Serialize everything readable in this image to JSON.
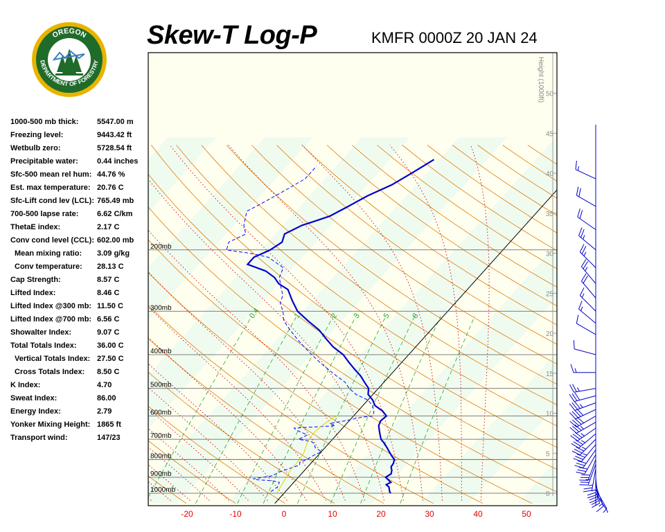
{
  "header": {
    "title": "Skew-T Log-P",
    "station": "KMFR 0000Z 20 JAN 24"
  },
  "logo": {
    "top_text": "OREGON",
    "ring_text": "DEPARTMENT OF FORESTRY",
    "ring_color": "#1f6b2a",
    "accent_color": "#e8b400"
  },
  "stats": [
    {
      "label": "1000-500 mb thick:",
      "value": "5547.00 m"
    },
    {
      "label": "Freezing level:",
      "value": "9443.42 ft"
    },
    {
      "label": "Wetbulb zero:",
      "value": "5728.54 ft"
    },
    {
      "label": "Precipitable water:",
      "value": "0.44 inches"
    },
    {
      "label": "Sfc-500 mean rel hum:",
      "value": "44.76 %"
    },
    {
      "label": "Est. max temperature:",
      "value": "20.76 C"
    },
    {
      "label": "Sfc-Lift cond lev (LCL):",
      "value": "765.49 mb"
    },
    {
      "label": "700-500 lapse rate:",
      "value": "6.62 C/km"
    },
    {
      "label": "ThetaE index:",
      "value": "2.17 C"
    },
    {
      "label": "Conv cond level (CCL):",
      "value": "602.00 mb"
    },
    {
      "label": "Mean mixing ratio:",
      "value": "3.09 g/kg",
      "indent": true
    },
    {
      "label": "Conv temperature:",
      "value": "28.13 C",
      "indent": true
    },
    {
      "label": "Cap Strength:",
      "value": "8.57 C"
    },
    {
      "label": "Lifted Index:",
      "value": "8.46 C"
    },
    {
      "label": "Lifted Index @300 mb:",
      "value": "11.50 C"
    },
    {
      "label": "Lifted Index @700 mb:",
      "value": "6.56 C"
    },
    {
      "label": "Showalter Index:",
      "value": "9.07 C"
    },
    {
      "label": "Total Totals Index:",
      "value": "36.00 C"
    },
    {
      "label": "Vertical Totals Index:",
      "value": "27.50 C",
      "indent": true
    },
    {
      "label": "Cross Totals Index:",
      "value": "8.50 C",
      "indent": true
    },
    {
      "label": "K Index:",
      "value": "4.70"
    },
    {
      "label": "Sweat Index:",
      "value": "86.00"
    },
    {
      "label": "Energy Index:",
      "value": "2.79"
    },
    {
      "label": "Yonker Mixing Height:",
      "value": "1865 ft"
    },
    {
      "label": "Transport wind:",
      "value": "147/23"
    }
  ],
  "chart_data": {
    "type": "line",
    "title": "Skew-T Log-P",
    "subtitle": "KMFR 0000Z 20 JAN 24",
    "xlabel": "",
    "ylabel": "",
    "x_ticks": [
      -20,
      -10,
      0,
      10,
      20,
      30,
      40,
      50
    ],
    "pressure_levels": [
      200,
      300,
      400,
      500,
      600,
      700,
      800,
      900,
      1000
    ],
    "pressure_labels": [
      "200mb",
      "300mb",
      "400mb",
      "500mb",
      "600mb",
      "700mb",
      "800mb",
      "900mb",
      "1000mb"
    ],
    "height_label": "Height (1000ft)",
    "height_ticks": [
      0,
      5,
      10,
      15,
      20,
      25,
      30,
      35,
      40,
      45,
      50
    ],
    "mixing_ratio_labels": [
      "0.4",
      "1",
      "2",
      "3",
      "5",
      "8"
    ],
    "colors": {
      "temperature": "#0000cc",
      "dewpoint": "#0000ff",
      "dry_adiabat": "#e07a00",
      "moist_adiabat": "#cc0000",
      "mixing_ratio": "#2aa52a",
      "isotherm_zero": "#000000",
      "parcel": "#e6d200",
      "x_tick_label": "#e00000",
      "band_yellow": "#fffff0",
      "band_green": "#f0fbf0"
    },
    "series": [
      {
        "name": "",
        "role": "temperature",
        "points": [
          [
            22,
            1000
          ],
          [
            21.5,
            990
          ],
          [
            21,
            975
          ],
          [
            20.5,
            960
          ],
          [
            19.5,
            945
          ],
          [
            20,
            930
          ],
          [
            19,
            915
          ],
          [
            18,
            900
          ],
          [
            18.5,
            880
          ],
          [
            18,
            860
          ],
          [
            17.2,
            840
          ],
          [
            17,
            820
          ],
          [
            16.5,
            800
          ],
          [
            15.2,
            780
          ],
          [
            14,
            760
          ],
          [
            12.8,
            740
          ],
          [
            11.5,
            720
          ],
          [
            10,
            700
          ],
          [
            9,
            680
          ],
          [
            8,
            660
          ],
          [
            7,
            640
          ],
          [
            6.5,
            620
          ],
          [
            6.8,
            600
          ],
          [
            5,
            580
          ],
          [
            2.5,
            560
          ],
          [
            1,
            540
          ],
          [
            -1,
            520
          ],
          [
            -2,
            500
          ],
          [
            -4,
            480
          ],
          [
            -6,
            460
          ],
          [
            -8.5,
            440
          ],
          [
            -11,
            420
          ],
          [
            -13.5,
            400
          ],
          [
            -17,
            380
          ],
          [
            -20,
            360
          ],
          [
            -23,
            340
          ],
          [
            -27,
            320
          ],
          [
            -31,
            300
          ],
          [
            -34,
            280
          ],
          [
            -37,
            260
          ],
          [
            -40,
            250
          ],
          [
            -42,
            240
          ],
          [
            -45,
            230
          ],
          [
            -50,
            220
          ],
          [
            -50,
            210
          ],
          [
            -48,
            200
          ],
          [
            -47,
            190
          ],
          [
            -48,
            180
          ],
          [
            -46,
            170
          ],
          [
            -44,
            165
          ],
          [
            -42,
            160
          ],
          [
            -40,
            150
          ],
          [
            -38,
            140
          ],
          [
            -35,
            130
          ],
          [
            -33,
            120
          ],
          [
            -31,
            110
          ]
        ]
      },
      {
        "name": "",
        "role": "dewpoint",
        "points": [
          [
            -3,
            990
          ],
          [
            -2.5,
            960
          ],
          [
            -3,
            930
          ],
          [
            -5,
            920
          ],
          [
            -8,
            915
          ],
          [
            -9,
            910
          ],
          [
            -5.5,
            890
          ],
          [
            -5,
            870
          ],
          [
            -3.5,
            850
          ],
          [
            -2,
            830
          ],
          [
            -2.5,
            815
          ],
          [
            -1.5,
            800
          ],
          [
            -1,
            780
          ],
          [
            0,
            760
          ],
          [
            -2,
            740
          ],
          [
            -3,
            720
          ],
          [
            -4,
            710
          ],
          [
            -7,
            700
          ],
          [
            -6,
            680
          ],
          [
            -9,
            660
          ],
          [
            -10,
            650
          ],
          [
            -2,
            640
          ],
          [
            -3.5,
            630
          ],
          [
            -1,
            620
          ],
          [
            2,
            605
          ],
          [
            4,
            600
          ],
          [
            3.5,
            585
          ],
          [
            2,
            560
          ],
          [
            0,
            540
          ],
          [
            -3.5,
            520
          ],
          [
            -6,
            500
          ],
          [
            -8,
            480
          ],
          [
            -11,
            460
          ],
          [
            -14,
            440
          ],
          [
            -17,
            420
          ],
          [
            -20,
            400
          ],
          [
            -23,
            380
          ],
          [
            -26,
            360
          ],
          [
            -29,
            340
          ],
          [
            -32,
            320
          ],
          [
            -34,
            300
          ],
          [
            -36,
            285
          ],
          [
            -37,
            270
          ],
          [
            -39,
            255
          ],
          [
            -41,
            240
          ],
          [
            -42,
            225
          ],
          [
            -47,
            210
          ],
          [
            -51,
            205
          ],
          [
            -57,
            200
          ],
          [
            -58,
            190
          ],
          [
            -56,
            180
          ],
          [
            -58,
            170
          ],
          [
            -60,
            155
          ],
          [
            -58,
            145
          ],
          [
            -56,
            135
          ],
          [
            -54,
            125
          ],
          [
            -54,
            115
          ]
        ]
      },
      {
        "name": "",
        "role": "parcel",
        "points": [
          [
            -1.5,
            1000
          ],
          [
            -2,
            950
          ],
          [
            -2.5,
            900
          ],
          [
            -3,
            850
          ],
          [
            -3,
            800
          ],
          [
            -3.5,
            760
          ],
          [
            -4.5,
            720
          ],
          [
            -5,
            690
          ],
          [
            -5,
            660
          ],
          [
            -4.5,
            630
          ],
          [
            -4,
            610
          ],
          [
            -3.5,
            600
          ]
        ]
      }
    ],
    "wind_barbs": [
      {
        "p": 1000,
        "dir": 147,
        "spd": 5
      },
      {
        "p": 975,
        "dir": 150,
        "spd": 10
      },
      {
        "p": 950,
        "dir": 160,
        "spd": 15
      },
      {
        "p": 925,
        "dir": 170,
        "spd": 20
      },
      {
        "p": 900,
        "dir": 175,
        "spd": 20
      },
      {
        "p": 875,
        "dir": 180,
        "spd": 25
      },
      {
        "p": 850,
        "dir": 190,
        "spd": 25
      },
      {
        "p": 825,
        "dir": 200,
        "spd": 25
      },
      {
        "p": 800,
        "dir": 200,
        "spd": 30
      },
      {
        "p": 775,
        "dir": 210,
        "spd": 30
      },
      {
        "p": 750,
        "dir": 215,
        "spd": 30
      },
      {
        "p": 725,
        "dir": 220,
        "spd": 35
      },
      {
        "p": 700,
        "dir": 225,
        "spd": 35
      },
      {
        "p": 675,
        "dir": 230,
        "spd": 35
      },
      {
        "p": 650,
        "dir": 235,
        "spd": 35
      },
      {
        "p": 625,
        "dir": 240,
        "spd": 35
      },
      {
        "p": 600,
        "dir": 240,
        "spd": 40
      },
      {
        "p": 575,
        "dir": 245,
        "spd": 40
      },
      {
        "p": 550,
        "dir": 250,
        "spd": 35
      },
      {
        "p": 525,
        "dir": 255,
        "spd": 30
      },
      {
        "p": 500,
        "dir": 260,
        "spd": 25
      },
      {
        "p": 450,
        "dir": 270,
        "spd": 15
      },
      {
        "p": 400,
        "dir": 285,
        "spd": 10
      },
      {
        "p": 350,
        "dir": 300,
        "spd": 10
      },
      {
        "p": 325,
        "dir": 310,
        "spd": 15
      },
      {
        "p": 300,
        "dir": 315,
        "spd": 15
      },
      {
        "p": 275,
        "dir": 320,
        "spd": 20
      },
      {
        "p": 250,
        "dir": 320,
        "spd": 25
      },
      {
        "p": 225,
        "dir": 315,
        "spd": 25
      },
      {
        "p": 200,
        "dir": 310,
        "spd": 25
      },
      {
        "p": 175,
        "dir": 305,
        "spd": 20
      },
      {
        "p": 150,
        "dir": 300,
        "spd": 20
      },
      {
        "p": 125,
        "dir": 295,
        "spd": 15
      }
    ]
  }
}
